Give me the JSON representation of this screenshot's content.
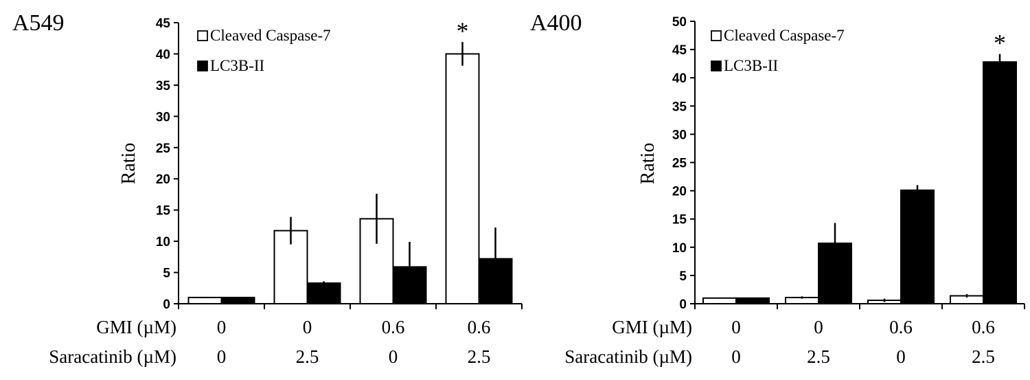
{
  "chart_data": [
    {
      "type": "bar",
      "panel_label": "A549",
      "ylabel": "Ratio",
      "ylim": [
        0,
        45
      ],
      "y_ticks": [
        0,
        5,
        10,
        15,
        20,
        25,
        30,
        35,
        40,
        45
      ],
      "row_labels": [
        "GMI (µM)",
        "Saracatinib (µM)"
      ],
      "conditions": [
        [
          "0",
          "0"
        ],
        [
          "0",
          "2.5"
        ],
        [
          "0.6",
          "0"
        ],
        [
          "0.6",
          "2.5"
        ]
      ],
      "legend": [
        "Cleaved Caspase-7",
        "LC3B-II"
      ],
      "legend_position": "top-left",
      "series": [
        {
          "name": "Cleaved Caspase-7",
          "fill": "#ffffff",
          "values": [
            1.0,
            11.7,
            13.6,
            40.0
          ],
          "errors": [
            0.1,
            2.2,
            4.0,
            1.9
          ]
        },
        {
          "name": "LC3B-II",
          "fill": "#000000",
          "values": [
            1.0,
            3.3,
            5.9,
            7.2
          ],
          "errors": [
            0.1,
            0.3,
            4.0,
            5.0
          ]
        }
      ],
      "annotations": [
        {
          "series": 0,
          "index": 3,
          "text": "*"
        }
      ]
    },
    {
      "type": "bar",
      "panel_label": "A400",
      "ylabel": "Ratio",
      "ylim": [
        0,
        50
      ],
      "y_ticks": [
        0,
        5,
        10,
        15,
        20,
        25,
        30,
        35,
        40,
        45,
        50
      ],
      "row_labels": [
        "GMI (µM)",
        "Saracatinib (µM)"
      ],
      "conditions": [
        [
          "0",
          "0"
        ],
        [
          "0",
          "2.5"
        ],
        [
          "0.6",
          "0"
        ],
        [
          "0.6",
          "2.5"
        ]
      ],
      "legend": [
        "Cleaved Caspase-7",
        "LC3B-II"
      ],
      "legend_position": "top-left",
      "series": [
        {
          "name": "Cleaved Caspase-7",
          "fill": "#ffffff",
          "values": [
            1.0,
            1.1,
            0.6,
            1.4
          ],
          "errors": [
            0.1,
            0.2,
            0.3,
            0.3
          ]
        },
        {
          "name": "LC3B-II",
          "fill": "#000000",
          "values": [
            1.0,
            10.7,
            20.1,
            42.8
          ],
          "errors": [
            0.1,
            3.6,
            0.9,
            1.4
          ]
        }
      ],
      "annotations": [
        {
          "series": 1,
          "index": 3,
          "text": "*"
        }
      ]
    }
  ]
}
